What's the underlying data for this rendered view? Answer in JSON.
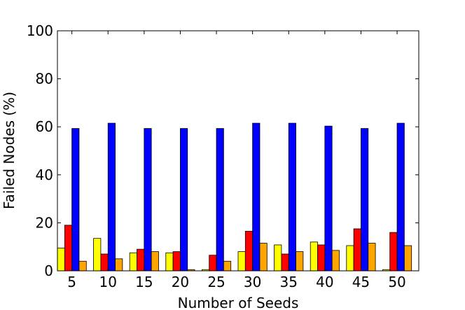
{
  "chart_data": {
    "type": "bar",
    "xlabel": "Number of Seeds",
    "ylabel": "Failed Nodes (%)",
    "ylim": [
      0,
      100
    ],
    "yticks": [
      0,
      20,
      40,
      60,
      80,
      100
    ],
    "grid": false,
    "categories": [
      "5",
      "10",
      "15",
      "20",
      "25",
      "30",
      "35",
      "40",
      "45",
      "50"
    ],
    "series": [
      {
        "color": "#ffff00",
        "values": [
          9.5,
          13.5,
          7.5,
          7.5,
          0.5,
          8.0,
          10.8,
          12.0,
          10.5,
          0.5
        ]
      },
      {
        "color": "#ff0000",
        "values": [
          19.0,
          7.0,
          9.0,
          8.0,
          6.5,
          16.5,
          7.0,
          10.8,
          17.5,
          16.0
        ]
      },
      {
        "color": "#0000ff",
        "values": [
          59.3,
          61.5,
          59.3,
          59.3,
          59.3,
          61.5,
          61.5,
          60.3,
          59.3,
          61.5
        ]
      },
      {
        "color": "#ffa500",
        "values": [
          4.0,
          5.0,
          8.0,
          0.5,
          4.0,
          11.5,
          8.0,
          8.5,
          11.5,
          10.5
        ]
      }
    ]
  }
}
